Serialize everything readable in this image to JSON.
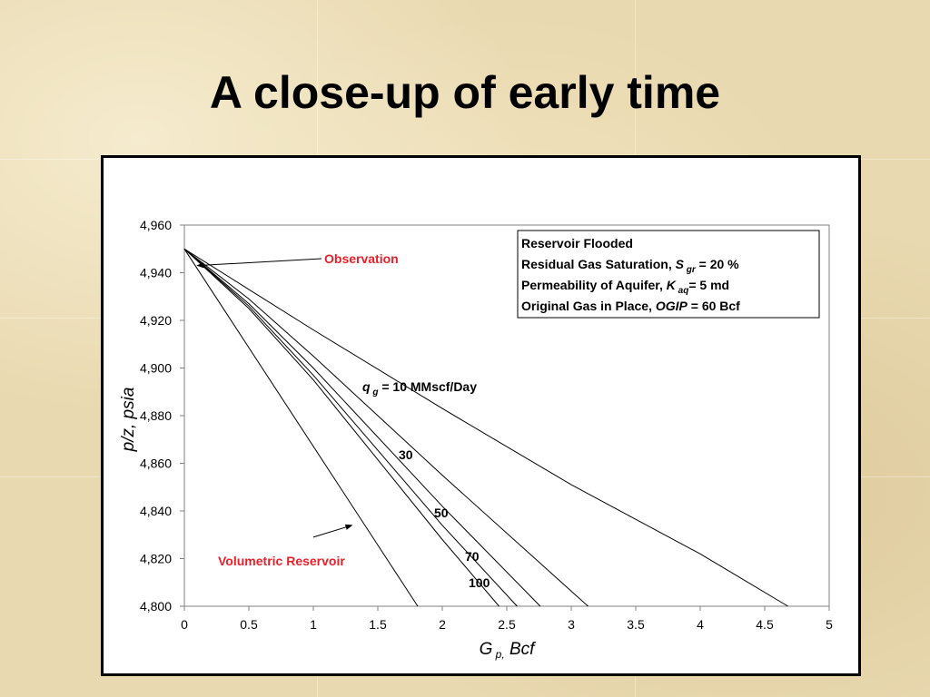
{
  "slide": {
    "title": "A close-up of early time"
  },
  "colors": {
    "annotation_red": "#e8202a",
    "axis": "#888888",
    "line": "#000000"
  },
  "chart_data": {
    "type": "line",
    "xlabel": "G p, Bcf",
    "ylabel": "p/z, psia",
    "xlim": [
      0,
      5
    ],
    "ylim": [
      4800,
      4960
    ],
    "x_ticks": [
      "0",
      "0.5",
      "1",
      "1.5",
      "2",
      "2.5",
      "3",
      "3.5",
      "4",
      "4.5",
      "5"
    ],
    "y_ticks": [
      "4,800",
      "4,820",
      "4,840",
      "4,860",
      "4,880",
      "4,900",
      "4,920",
      "4,940",
      "4,960"
    ],
    "grid": false,
    "legend_box": {
      "lines": [
        "Reservoir Flooded",
        "Residual Gas Saturation, S gr = 20 %",
        "Permeability of Aquifer, K aq = 5 md",
        "Original Gas in Place, OGIP = 60 Bcf"
      ]
    },
    "series": [
      {
        "label": "q g = 10 MMscf/Day",
        "values": [
          [
            0,
            4950
          ],
          [
            0.5,
            4933
          ],
          [
            1,
            4916
          ],
          [
            2,
            4883
          ],
          [
            3,
            4851
          ],
          [
            4,
            4822
          ],
          [
            4.68,
            4800
          ]
        ]
      },
      {
        "label": "30",
        "values": [
          [
            0,
            4950
          ],
          [
            0.5,
            4929
          ],
          [
            1,
            4905
          ],
          [
            2,
            4855
          ],
          [
            3.13,
            4800
          ]
        ]
      },
      {
        "label": "50",
        "values": [
          [
            0,
            4950
          ],
          [
            0.5,
            4927
          ],
          [
            1,
            4900
          ],
          [
            2,
            4842
          ],
          [
            2.76,
            4800
          ]
        ]
      },
      {
        "label": "70",
        "values": [
          [
            0,
            4950
          ],
          [
            0.5,
            4926
          ],
          [
            1,
            4897
          ],
          [
            2,
            4834
          ],
          [
            2.58,
            4800
          ]
        ]
      },
      {
        "label": "100",
        "values": [
          [
            0,
            4950
          ],
          [
            0.5,
            4925
          ],
          [
            1,
            4895
          ],
          [
            2,
            4828
          ],
          [
            2.44,
            4800
          ]
        ]
      },
      {
        "label": "Volumetric Reservoir",
        "values": [
          [
            0,
            4950
          ],
          [
            1.81,
            4800
          ]
        ]
      }
    ],
    "annotations": [
      {
        "text": "Observation",
        "x": 1.1,
        "y": 4943,
        "arrow_to": [
          0.1,
          4943
        ]
      },
      {
        "text": "Volumetric Reservoir",
        "x": 0.27,
        "y": 4818,
        "arrow_from": [
          1.0,
          4829
        ],
        "arrow_to": [
          1.3,
          4834
        ]
      }
    ]
  }
}
